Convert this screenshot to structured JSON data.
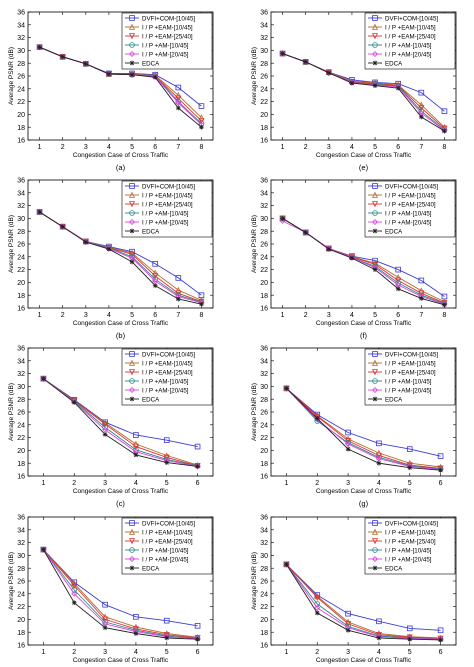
{
  "series_style": [
    {
      "name": "DVFI+COM-[10/45]",
      "color": "#3b3bd6",
      "marker": "square"
    },
    {
      "name": "I / P    +EAM-[10/45]",
      "color": "#b36b2d",
      "marker": "triangle"
    },
    {
      "name": "I / P    +EAM-[25/40]",
      "color": "#e03030",
      "marker": "tri-down"
    },
    {
      "name": "I / P    +AM-[10/45]",
      "color": "#2a8a8a",
      "marker": "circle"
    },
    {
      "name": "I / P    +AM-[20/45]",
      "color": "#e040e0",
      "marker": "diamond"
    },
    {
      "name": "EDCA",
      "color": "#222222",
      "marker": "star"
    }
  ],
  "chart_data": [
    {
      "type": "line",
      "subplot_label": "(a)",
      "xlabel": "Congestion Case of Cross Traffic",
      "ylabel": "Average PSNR (dB)",
      "xlim": [
        0.5,
        8.5
      ],
      "ylim": [
        16,
        36
      ],
      "xticks": [
        1,
        2,
        3,
        4,
        5,
        6,
        7,
        8
      ],
      "yticks": [
        16,
        18,
        20,
        22,
        24,
        26,
        28,
        30,
        32,
        34,
        36
      ],
      "x": [
        1,
        2,
        3,
        4,
        5,
        6,
        7,
        8
      ],
      "series": [
        {
          "name": "DVFI+COM-[10/45]",
          "values": [
            30.5,
            29.0,
            27.9,
            26.4,
            26.4,
            26.2,
            24.2,
            21.3
          ]
        },
        {
          "name": "I / P    +EAM-[10/45]",
          "values": [
            30.5,
            29.0,
            27.9,
            26.3,
            26.3,
            26.1,
            23.0,
            19.5
          ]
        },
        {
          "name": "I / P    +EAM-[25/40]",
          "values": [
            30.5,
            29.0,
            27.9,
            26.3,
            26.2,
            26.0,
            22.5,
            19.0
          ]
        },
        {
          "name": "I / P    +AM-[10/45]",
          "values": [
            30.5,
            29.0,
            27.9,
            26.3,
            26.2,
            26.0,
            22.0,
            18.6
          ]
        },
        {
          "name": "I / P    +AM-[20/45]",
          "values": [
            30.5,
            29.0,
            27.9,
            26.3,
            26.2,
            25.9,
            21.8,
            18.4
          ]
        },
        {
          "name": "EDCA",
          "values": [
            30.5,
            29.0,
            27.9,
            26.3,
            26.2,
            25.8,
            21.0,
            18.0
          ]
        }
      ]
    },
    {
      "type": "line",
      "subplot_label": "(e)",
      "xlabel": "Congestion Case of Cross Traffic",
      "ylabel": "Average PSNR (dB)",
      "xlim": [
        0.5,
        8.5
      ],
      "ylim": [
        16,
        36
      ],
      "xticks": [
        1,
        2,
        3,
        4,
        5,
        6,
        7,
        8
      ],
      "yticks": [
        16,
        18,
        20,
        22,
        24,
        26,
        28,
        30,
        32,
        34,
        36
      ],
      "x": [
        1,
        2,
        3,
        4,
        5,
        6,
        7,
        8
      ],
      "series": [
        {
          "name": "DVFI+COM-[10/45]",
          "values": [
            29.5,
            28.2,
            26.6,
            25.4,
            25.0,
            24.8,
            23.4,
            20.5
          ]
        },
        {
          "name": "I / P    +EAM-[10/45]",
          "values": [
            29.5,
            28.2,
            26.6,
            25.2,
            24.9,
            24.6,
            21.5,
            18.0
          ]
        },
        {
          "name": "I / P    +EAM-[25/40]",
          "values": [
            29.5,
            28.2,
            26.5,
            25.1,
            24.8,
            24.5,
            21.0,
            17.8
          ]
        },
        {
          "name": "I / P    +AM-[10/45]",
          "values": [
            29.5,
            28.2,
            26.5,
            25.0,
            24.7,
            24.4,
            20.5,
            17.6
          ]
        },
        {
          "name": "I / P    +AM-[20/45]",
          "values": [
            29.5,
            28.2,
            26.5,
            25.0,
            24.6,
            24.3,
            20.2,
            17.5
          ]
        },
        {
          "name": "EDCA",
          "values": [
            29.5,
            28.2,
            26.5,
            24.9,
            24.5,
            24.1,
            19.6,
            17.4
          ]
        }
      ]
    },
    {
      "type": "line",
      "subplot_label": "(b)",
      "xlabel": "Congestion Case of Cross Traffic",
      "ylabel": "Average PSNR (dB)",
      "xlim": [
        0.5,
        8.5
      ],
      "ylim": [
        16,
        36
      ],
      "xticks": [
        1,
        2,
        3,
        4,
        5,
        6,
        7,
        8
      ],
      "yticks": [
        16,
        18,
        20,
        22,
        24,
        26,
        28,
        30,
        32,
        34,
        36
      ],
      "x": [
        1,
        2,
        3,
        4,
        5,
        6,
        7,
        8
      ],
      "series": [
        {
          "name": "DVFI+COM-[10/45]",
          "values": [
            31.0,
            28.7,
            26.4,
            25.6,
            24.8,
            22.9,
            20.7,
            18.0
          ]
        },
        {
          "name": "I / P    +EAM-[10/45]",
          "values": [
            31.0,
            28.7,
            26.4,
            25.5,
            24.6,
            21.5,
            18.8,
            17.2
          ]
        },
        {
          "name": "I / P    +EAM-[25/40]",
          "values": [
            31.0,
            28.7,
            26.4,
            25.4,
            24.4,
            21.0,
            18.3,
            17.0
          ]
        },
        {
          "name": "I / P    +AM-[10/45]",
          "values": [
            31.0,
            28.7,
            26.4,
            25.4,
            24.0,
            20.5,
            18.0,
            16.9
          ]
        },
        {
          "name": "I / P    +AM-[20/45]",
          "values": [
            31.0,
            28.7,
            26.4,
            25.3,
            23.8,
            20.2,
            17.8,
            16.8
          ]
        },
        {
          "name": "EDCA",
          "values": [
            31.0,
            28.7,
            26.3,
            25.2,
            23.2,
            19.5,
            17.4,
            16.6
          ]
        }
      ]
    },
    {
      "type": "line",
      "subplot_label": "(f)",
      "xlabel": "Congestion Case of Cross Traffic",
      "ylabel": "Average PSNR (dB)",
      "xlim": [
        0.5,
        8.5
      ],
      "ylim": [
        16,
        36
      ],
      "xticks": [
        1,
        2,
        3,
        4,
        5,
        6,
        7,
        8
      ],
      "yticks": [
        16,
        18,
        20,
        22,
        24,
        26,
        28,
        30,
        32,
        34,
        36
      ],
      "x": [
        1,
        2,
        3,
        4,
        5,
        6,
        7,
        8
      ],
      "series": [
        {
          "name": "DVFI+COM-[10/45]",
          "values": [
            30.0,
            27.8,
            25.3,
            24.1,
            23.4,
            22.0,
            20.3,
            17.8
          ]
        },
        {
          "name": "I / P    +EAM-[10/45]",
          "values": [
            30.0,
            27.8,
            25.3,
            24.0,
            23.0,
            20.8,
            18.7,
            17.0
          ]
        },
        {
          "name": "I / P    +EAM-[25/40]",
          "values": [
            30.0,
            27.8,
            25.3,
            24.0,
            22.8,
            20.3,
            18.3,
            16.8
          ]
        },
        {
          "name": "I / P    +AM-[10/45]",
          "values": [
            30.0,
            27.8,
            25.3,
            23.9,
            22.5,
            19.9,
            18.0,
            16.7
          ]
        },
        {
          "name": "I / P    +AM-[20/45]",
          "values": [
            29.6,
            27.8,
            25.3,
            23.9,
            22.3,
            19.6,
            17.8,
            16.6
          ]
        },
        {
          "name": "EDCA",
          "values": [
            30.0,
            27.8,
            25.2,
            23.8,
            22.0,
            19.0,
            17.5,
            16.5
          ]
        }
      ]
    },
    {
      "type": "line",
      "subplot_label": "(c)",
      "xlabel": "Congestion Case of Cross Traffic",
      "ylabel": "Average PSNR (dB)",
      "xlim": [
        0.5,
        6.5
      ],
      "ylim": [
        16,
        36
      ],
      "xticks": [
        1,
        2,
        3,
        4,
        5,
        6
      ],
      "yticks": [
        16,
        18,
        20,
        22,
        24,
        26,
        28,
        30,
        32,
        34,
        36
      ],
      "x": [
        1,
        2,
        3,
        4,
        5,
        6
      ],
      "series": [
        {
          "name": "DVFI+COM-[10/45]",
          "values": [
            31.2,
            27.9,
            24.4,
            22.4,
            21.6,
            20.6
          ]
        },
        {
          "name": "I / P    +EAM-[10/45]",
          "values": [
            31.2,
            27.8,
            24.3,
            21.0,
            19.2,
            17.7
          ]
        },
        {
          "name": "I / P    +EAM-[25/40]",
          "values": [
            31.2,
            27.8,
            24.1,
            20.6,
            18.9,
            17.6
          ]
        },
        {
          "name": "I / P    +AM-[10/45]",
          "values": [
            31.2,
            27.7,
            23.6,
            20.1,
            18.6,
            17.6
          ]
        },
        {
          "name": "I / P    +AM-[20/45]",
          "values": [
            31.2,
            27.6,
            23.2,
            19.8,
            18.4,
            17.5
          ]
        },
        {
          "name": "EDCA",
          "values": [
            31.2,
            27.5,
            22.5,
            19.3,
            18.1,
            17.5
          ]
        }
      ]
    },
    {
      "type": "line",
      "subplot_label": "(g)",
      "xlabel": "Congestion Case of Cross Traffic",
      "ylabel": "Average PSNR (dB)",
      "xlim": [
        0.5,
        6.5
      ],
      "ylim": [
        16,
        36
      ],
      "xticks": [
        1,
        2,
        3,
        4,
        5,
        6
      ],
      "yticks": [
        16,
        18,
        20,
        22,
        24,
        26,
        28,
        30,
        32,
        34,
        36
      ],
      "x": [
        1,
        2,
        3,
        4,
        5,
        6
      ],
      "series": [
        {
          "name": "DVFI+COM-[10/45]",
          "values": [
            29.7,
            25.6,
            22.8,
            21.1,
            20.2,
            19.1
          ]
        },
        {
          "name": "I / P    +EAM-[10/45]",
          "values": [
            29.7,
            25.4,
            21.8,
            19.6,
            18.0,
            17.4
          ]
        },
        {
          "name": "I / P    +EAM-[25/40]",
          "values": [
            29.7,
            25.3,
            21.5,
            19.2,
            17.7,
            17.2
          ]
        },
        {
          "name": "I / P    +AM-[10/45]",
          "values": [
            29.7,
            24.6,
            21.2,
            18.9,
            17.6,
            17.1
          ]
        },
        {
          "name": "I / P    +AM-[20/45]",
          "values": [
            29.7,
            24.8,
            21.0,
            18.7,
            17.5,
            17.0
          ]
        },
        {
          "name": "EDCA",
          "values": [
            29.7,
            25.0,
            20.2,
            18.0,
            17.3,
            16.9
          ]
        }
      ]
    },
    {
      "type": "line",
      "subplot_label": "(d)",
      "xlabel": "Congestion Case of Cross Traffic",
      "ylabel": "Average PSNR (dB)",
      "xlim": [
        0.5,
        6.5
      ],
      "ylim": [
        16,
        36
      ],
      "xticks": [
        1,
        2,
        3,
        4,
        5,
        6
      ],
      "yticks": [
        16,
        18,
        20,
        22,
        24,
        26,
        28,
        30,
        32,
        34,
        36
      ],
      "x": [
        1,
        2,
        3,
        4,
        5,
        6
      ],
      "series": [
        {
          "name": "DVFI+COM-[10/45]",
          "values": [
            30.9,
            25.8,
            22.3,
            20.4,
            19.8,
            19.0
          ]
        },
        {
          "name": "I / P    +EAM-[10/45]",
          "values": [
            30.9,
            25.6,
            20.4,
            18.8,
            17.8,
            17.2
          ]
        },
        {
          "name": "I / P    +EAM-[25/40]",
          "values": [
            30.9,
            25.3,
            20.0,
            18.5,
            17.6,
            17.1
          ]
        },
        {
          "name": "I / P    +AM-[10/45]",
          "values": [
            30.9,
            24.6,
            19.6,
            18.3,
            17.4,
            17.0
          ]
        },
        {
          "name": "I / P    +AM-[20/45]",
          "values": [
            30.9,
            24.0,
            19.3,
            18.1,
            17.3,
            17.0
          ]
        },
        {
          "name": "EDCA",
          "values": [
            30.9,
            22.6,
            18.7,
            17.8,
            17.1,
            16.9
          ]
        }
      ]
    },
    {
      "type": "line",
      "subplot_label": "(h)",
      "xlabel": "Congestion Case of Cross Traffic",
      "ylabel": "Average PSNR (dB)",
      "xlim": [
        0.5,
        6.5
      ],
      "ylim": [
        16,
        36
      ],
      "xticks": [
        1,
        2,
        3,
        4,
        5,
        6
      ],
      "yticks": [
        16,
        18,
        20,
        22,
        24,
        26,
        28,
        30,
        32,
        34,
        36
      ],
      "x": [
        1,
        2,
        3,
        4,
        5,
        6
      ],
      "series": [
        {
          "name": "DVFI+COM-[10/45]",
          "values": [
            28.6,
            23.8,
            20.9,
            19.7,
            18.6,
            18.3
          ]
        },
        {
          "name": "I / P    +EAM-[10/45]",
          "values": [
            28.6,
            23.6,
            19.6,
            17.8,
            17.3,
            17.1
          ]
        },
        {
          "name": "I / P    +EAM-[25/40]",
          "values": [
            28.6,
            23.4,
            19.3,
            17.6,
            17.2,
            17.0
          ]
        },
        {
          "name": "I / P    +AM-[10/45]",
          "values": [
            28.6,
            22.4,
            18.9,
            17.4,
            17.1,
            16.9
          ]
        },
        {
          "name": "I / P    +AM-[20/45]",
          "values": [
            28.6,
            21.8,
            18.7,
            17.3,
            17.0,
            16.9
          ]
        },
        {
          "name": "EDCA",
          "values": [
            28.6,
            21.0,
            18.3,
            17.1,
            16.9,
            16.8
          ]
        }
      ]
    }
  ]
}
